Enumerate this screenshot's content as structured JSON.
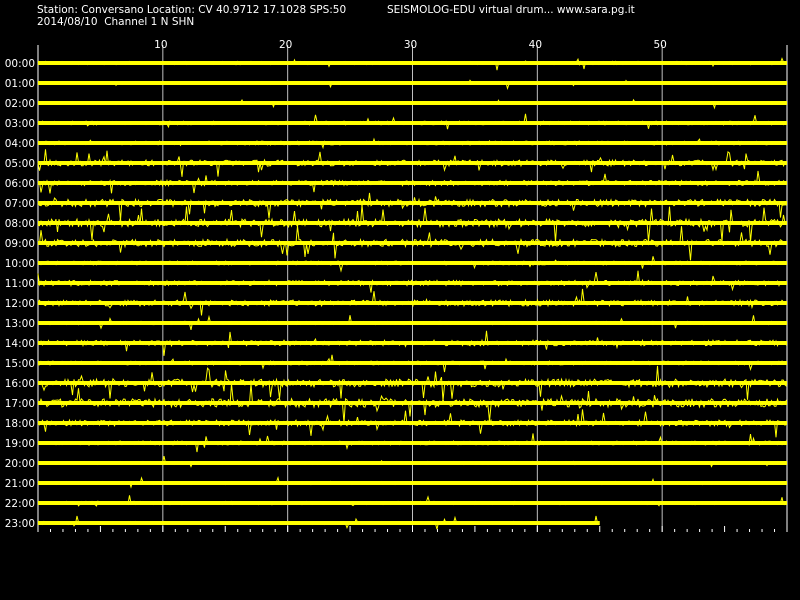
{
  "header": {
    "station_line": "Station: Conversano Location: CV 40.9712 17.1028 SPS:50",
    "date_line": "2014/08/10  Channel 1 N SHN",
    "source_line": "SEISMOLOG-EDU virtual drum... www.sara.pg.it"
  },
  "colors": {
    "background": "#000000",
    "trace": "#ffff00",
    "grid": "#c0c0c0",
    "text": "#ffffff"
  },
  "chart_data": {
    "type": "line",
    "title": "",
    "x_axis": {
      "unit": "minutes",
      "range": [
        0,
        60
      ],
      "ticks": [
        10,
        20,
        30,
        40,
        50
      ],
      "tick_labels": [
        "10",
        "20",
        "30",
        "40",
        "50"
      ],
      "position": "top"
    },
    "y_axis": {
      "labels": [
        "00:00",
        "01:00",
        "02:00",
        "03:00",
        "04:00",
        "05:00",
        "06:00",
        "07:00",
        "08:00",
        "09:00",
        "10:00",
        "11:00",
        "12:00",
        "13:00",
        "14:00",
        "15:00",
        "16:00",
        "17:00",
        "18:00",
        "19:00",
        "20:00",
        "21:00",
        "22:00",
        "23:00"
      ]
    },
    "grid": true,
    "last_row_end_minute": 45
  }
}
